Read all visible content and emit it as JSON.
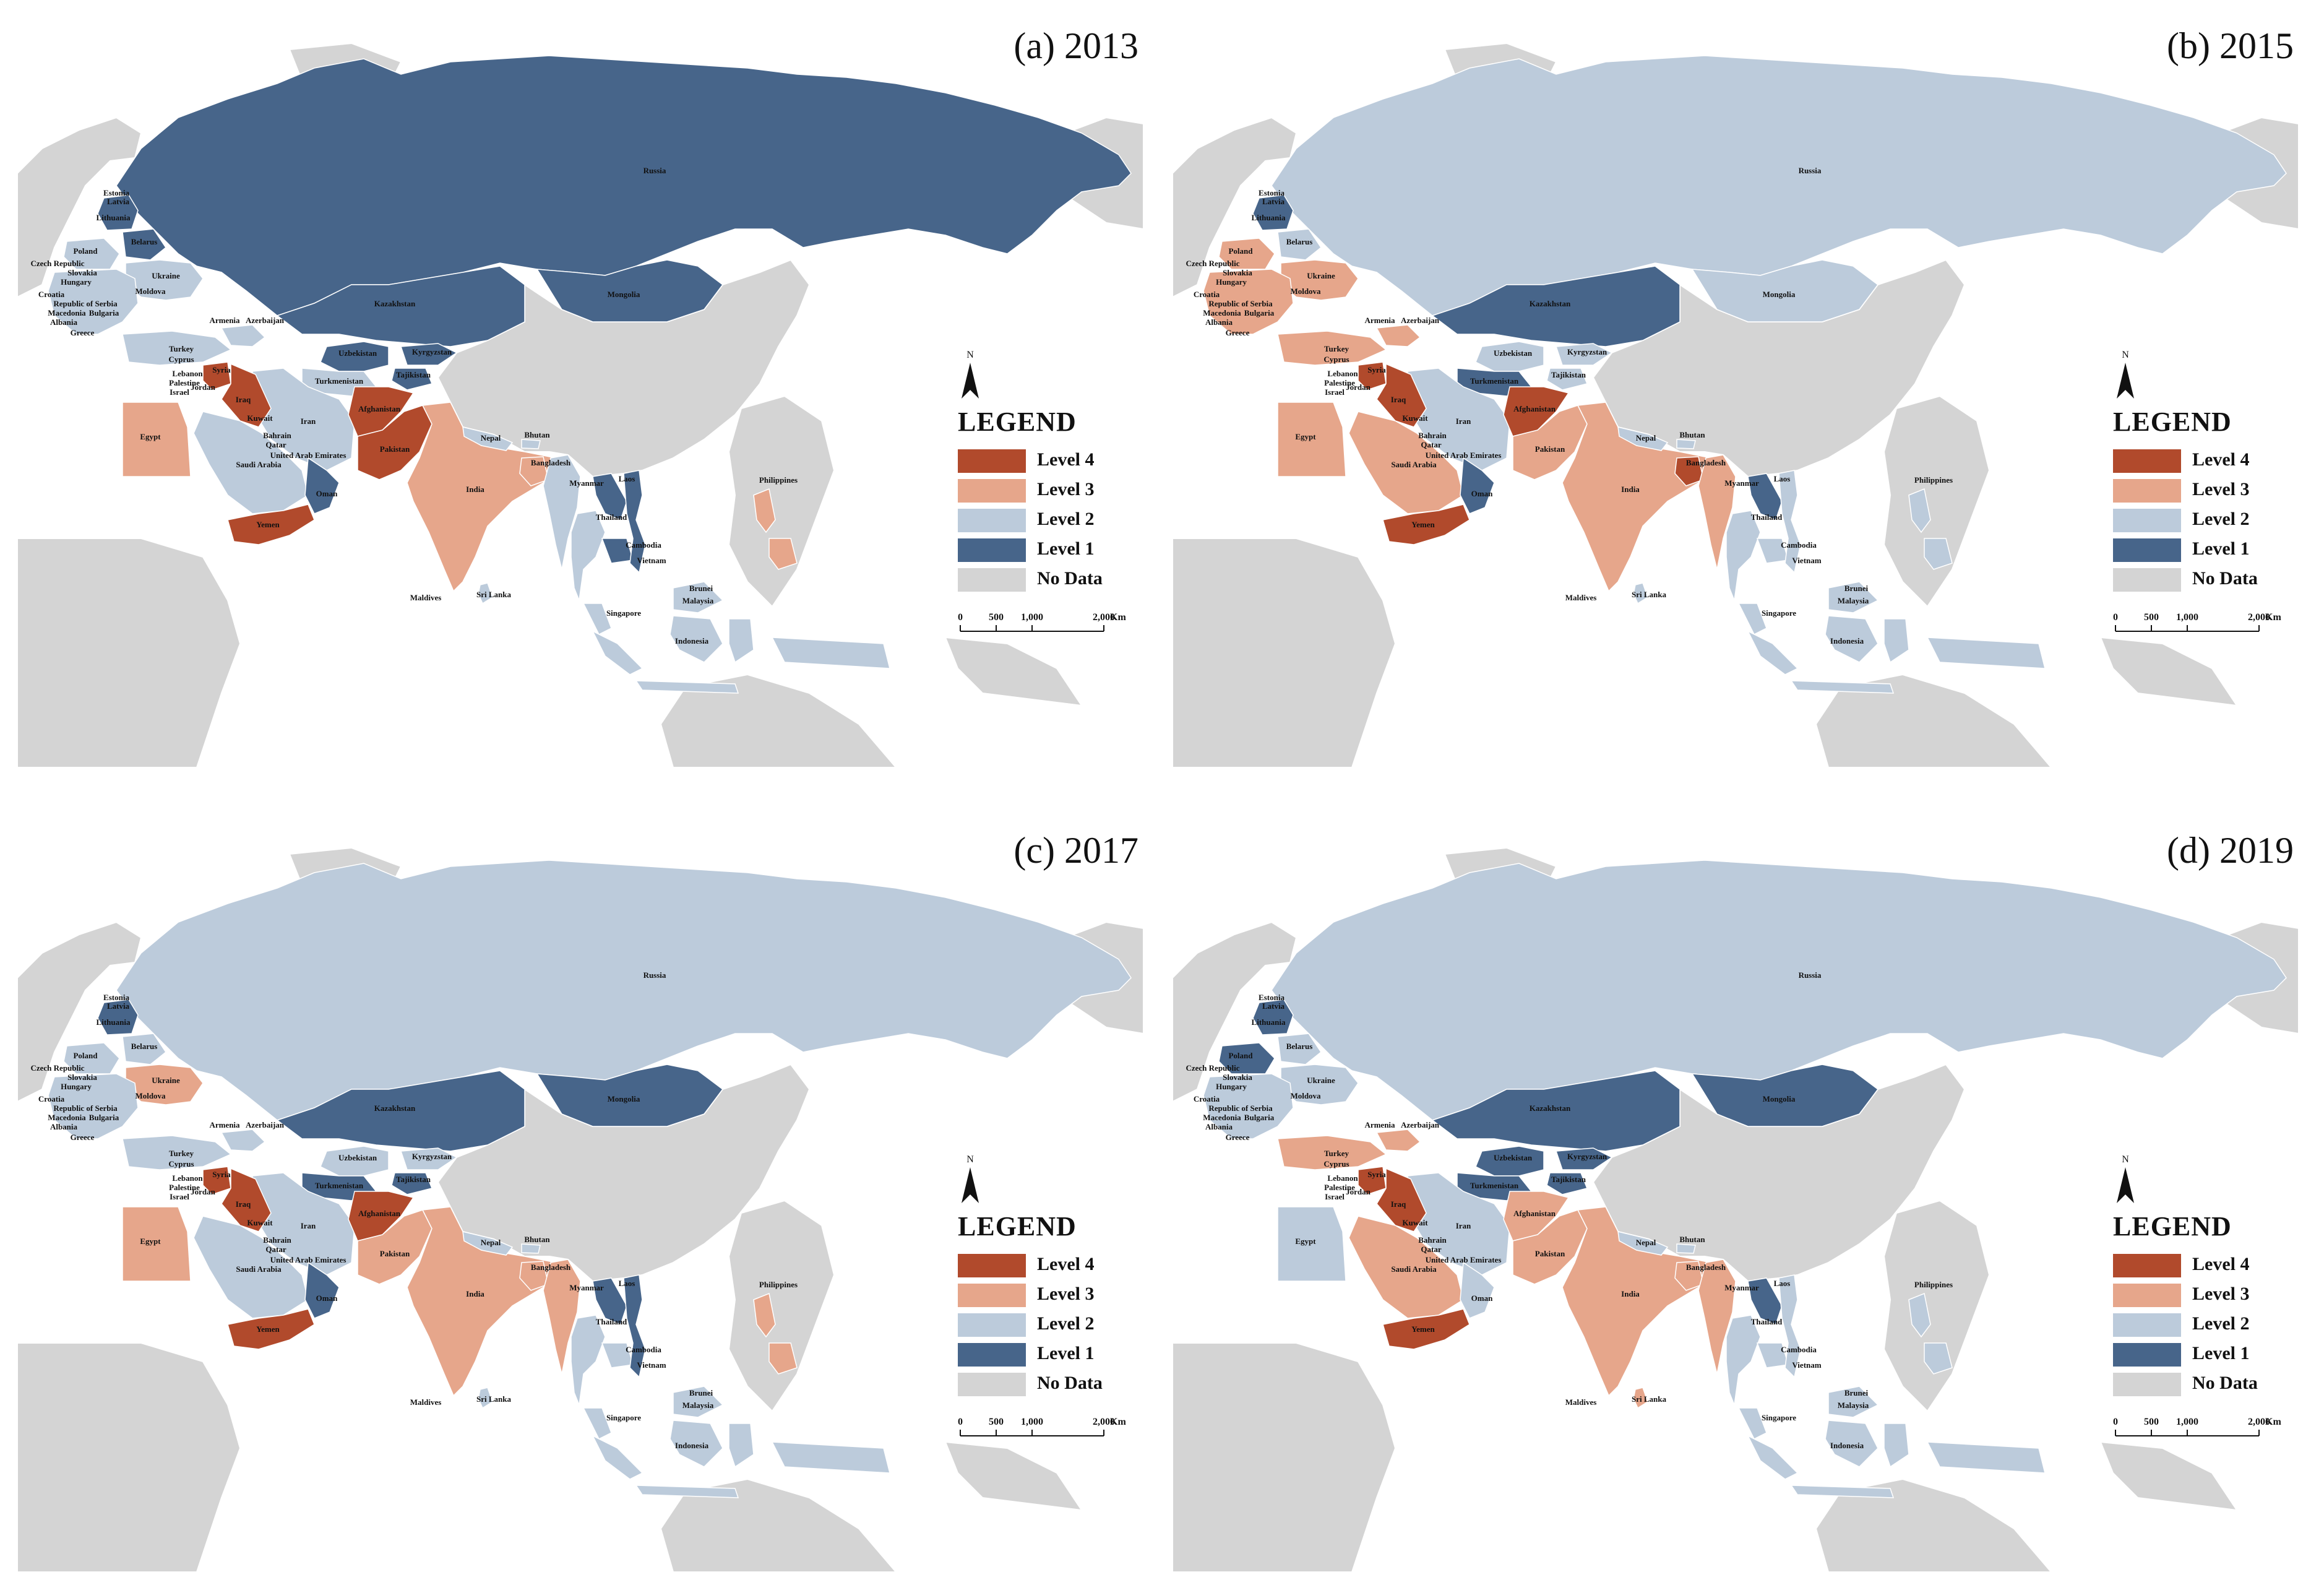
{
  "panels": [
    {
      "title": "(a) 2013",
      "levels": {
        "russia": 1,
        "kazakhstan": 1,
        "mongolia": 1,
        "uzbekistan": 1,
        "turkmenistan": 2,
        "kyrgyzstan": 1,
        "tajikistan": 1,
        "iran": 2,
        "afghanistan": 4,
        "pakistan": 4,
        "india": 3,
        "nepal": 2,
        "bangladesh": 3,
        "myanmar": 2,
        "thailand": 2,
        "laos": 1,
        "cambodia": 1,
        "vietnam": 1,
        "malaysia": 2,
        "indonesia": 2,
        "philippines": 3,
        "srilanka": 2,
        "turkey": 2,
        "saudiarabia": 2,
        "yemen": 4,
        "oman": 1,
        "iraq": 4,
        "syria": 4,
        "egypt": 3,
        "ukraine": 2,
        "belarus": 1,
        "poland": 2,
        "baltics": 1,
        "balkans": 2,
        "caucasus": 2,
        "china": 0,
        "bhutan": 2
      }
    },
    {
      "title": "(b) 2015",
      "levels": {
        "russia": 2,
        "kazakhstan": 1,
        "mongolia": 2,
        "uzbekistan": 2,
        "turkmenistan": 1,
        "kyrgyzstan": 2,
        "tajikistan": 2,
        "iran": 2,
        "afghanistan": 4,
        "pakistan": 3,
        "india": 3,
        "nepal": 2,
        "bangladesh": 4,
        "myanmar": 3,
        "thailand": 2,
        "laos": 1,
        "cambodia": 2,
        "vietnam": 2,
        "malaysia": 2,
        "indonesia": 2,
        "philippines": 2,
        "srilanka": 2,
        "turkey": 3,
        "saudiarabia": 3,
        "yemen": 4,
        "oman": 1,
        "iraq": 4,
        "syria": 4,
        "egypt": 3,
        "ukraine": 3,
        "belarus": 2,
        "poland": 3,
        "baltics": 1,
        "balkans": 3,
        "caucasus": 3,
        "china": 0,
        "bhutan": 2
      }
    },
    {
      "title": "(c) 2017",
      "levels": {
        "russia": 2,
        "kazakhstan": 1,
        "mongolia": 1,
        "uzbekistan": 2,
        "turkmenistan": 1,
        "kyrgyzstan": 2,
        "tajikistan": 1,
        "iran": 2,
        "afghanistan": 4,
        "pakistan": 3,
        "india": 3,
        "nepal": 2,
        "bangladesh": 3,
        "myanmar": 3,
        "thailand": 2,
        "laos": 1,
        "cambodia": 2,
        "vietnam": 1,
        "malaysia": 2,
        "indonesia": 2,
        "philippines": 3,
        "srilanka": 2,
        "turkey": 2,
        "saudiarabia": 2,
        "yemen": 4,
        "oman": 1,
        "iraq": 4,
        "syria": 4,
        "egypt": 3,
        "ukraine": 3,
        "belarus": 2,
        "poland": 2,
        "baltics": 1,
        "balkans": 2,
        "caucasus": 2,
        "china": 0,
        "bhutan": 2
      }
    },
    {
      "title": "(d) 2019",
      "levels": {
        "russia": 2,
        "kazakhstan": 1,
        "mongolia": 1,
        "uzbekistan": 1,
        "turkmenistan": 1,
        "kyrgyzstan": 1,
        "tajikistan": 1,
        "iran": 2,
        "afghanistan": 3,
        "pakistan": 3,
        "india": 3,
        "nepal": 2,
        "bangladesh": 3,
        "myanmar": 3,
        "thailand": 2,
        "laos": 1,
        "cambodia": 2,
        "vietnam": 2,
        "malaysia": 2,
        "indonesia": 2,
        "philippines": 2,
        "srilanka": 3,
        "turkey": 3,
        "saudiarabia": 3,
        "yemen": 4,
        "oman": 2,
        "iraq": 4,
        "syria": 4,
        "egypt": 2,
        "ukraine": 2,
        "belarus": 2,
        "poland": 1,
        "baltics": 1,
        "balkans": 2,
        "caucasus": 3,
        "china": 0,
        "bhutan": 2
      }
    }
  ],
  "legend": {
    "title": "LEGEND",
    "north_label": "N",
    "items": [
      {
        "label": "Level 4",
        "color": "#b14a2c"
      },
      {
        "label": "Level 3",
        "color": "#e6a68b"
      },
      {
        "label": "Level 2",
        "color": "#bccbdb"
      },
      {
        "label": "Level 1",
        "color": "#47658a"
      },
      {
        "label": "No Data",
        "color": "#d4d4d4"
      }
    ]
  },
  "scale": {
    "ticks": [
      "0",
      "500",
      "1,000",
      "2,000"
    ],
    "unit": "Km"
  },
  "country_labels": {
    "russia": "Russia",
    "kazakhstan": "Kazakhstan",
    "mongolia": "Mongolia",
    "uzbekistan": "Uzbekistan",
    "turkmenistan": "Turkmenistan",
    "kyrgyzstan": "Kyrgyzstan",
    "tajikistan": "Tajikistan",
    "iran": "Iran",
    "afghanistan": "Afghanistan",
    "pakistan": "Pakistan",
    "india": "India",
    "nepal": "Nepal",
    "bhutan": "Bhutan",
    "bangladesh": "Bangladesh",
    "myanmar": "Myanmar",
    "thailand": "Thailand",
    "laos": "Laos",
    "cambodia": "Cambodia",
    "vietnam": "Vietnam",
    "malaysia": "Malaysia",
    "brunei": "Brunei",
    "singapore": "Singapore",
    "indonesia": "Indonesia",
    "philippines": "Philippines",
    "srilanka": "Sri Lanka",
    "maldives": "Maldives",
    "turkey": "Turkey",
    "armenia": "Armenia",
    "azerbaijan": "Azerbaijan",
    "cyprus": "Cyprus",
    "syria": "Syria",
    "lebanon": "Lebanon",
    "palestine": "Palestine",
    "jordan": "Jordan",
    "israel": "Israel",
    "iraq": "Iraq",
    "kuwait": "Kuwait",
    "bahrain": "Bahrain",
    "qatar": "Qatar",
    "uae": "United Arab Emirates",
    "saudiarabia": "Saudi Arabia",
    "oman": "Oman",
    "yemen": "Yemen",
    "egypt": "Egypt",
    "estonia": "Estonia",
    "latvia": "Latvia",
    "lithuania": "Lithuania",
    "belarus": "Belarus",
    "poland": "Poland",
    "czech": "Czech Republic",
    "slovakia": "Slovakia",
    "hungary": "Hungary",
    "ukraine": "Ukraine",
    "moldova": "Moldova",
    "croatia": "Croatia",
    "serbia": "Republic of Serbia",
    "macedonia": "Macedonia",
    "bulgaria": "Bulgaria",
    "albania": "Albania",
    "greece": "Greece"
  }
}
